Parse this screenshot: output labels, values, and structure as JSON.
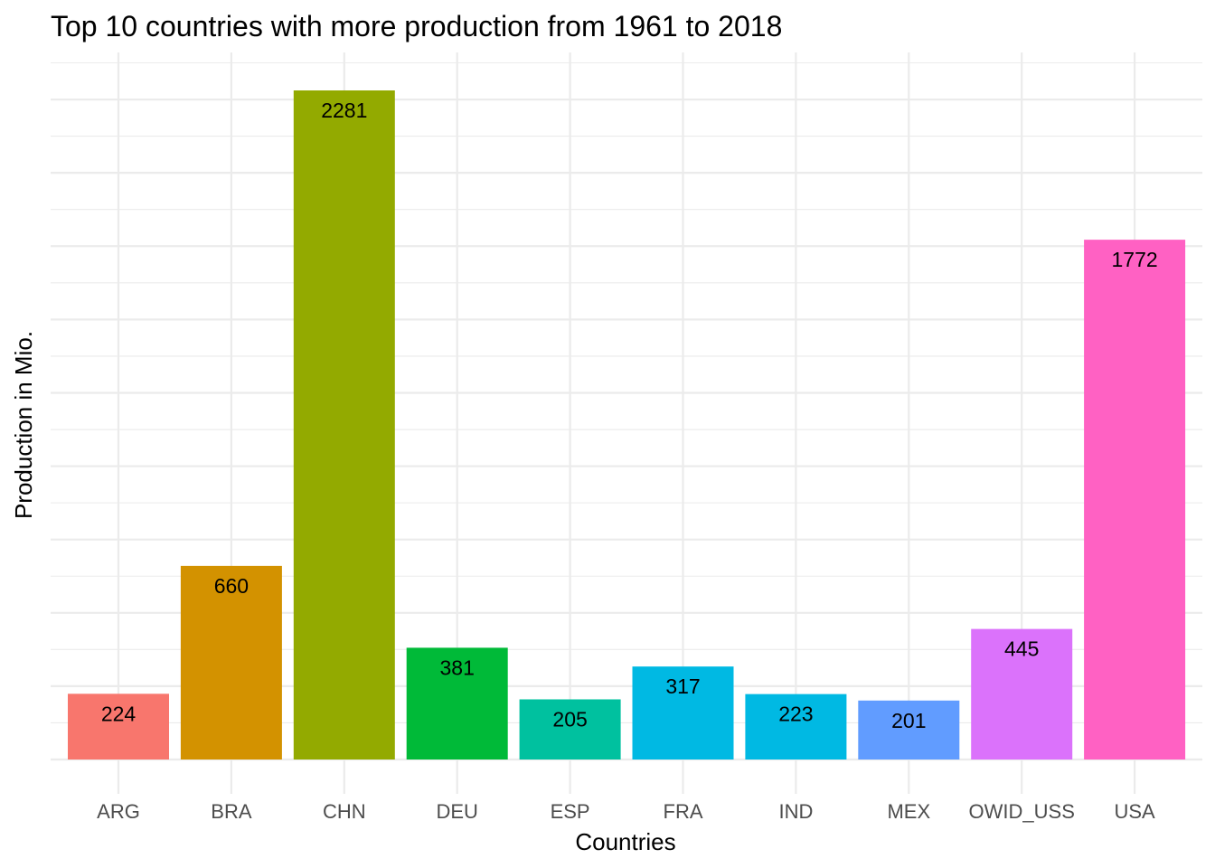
{
  "chart_data": {
    "type": "bar",
    "title": "Top 10 countries with more production from 1961 to 2018",
    "xlabel": "Countries",
    "ylabel": "Production in Mio.",
    "categories": [
      "ARG",
      "BRA",
      "CHN",
      "DEU",
      "ESP",
      "FRA",
      "IND",
      "MEX",
      "OWID_USS",
      "USA"
    ],
    "values": [
      224,
      660,
      2281,
      381,
      205,
      317,
      223,
      201,
      445,
      1772
    ],
    "labels": [
      "224",
      "660",
      "2281",
      "381",
      "205",
      "317",
      "223",
      "201",
      "445",
      "1772"
    ],
    "colors": [
      "#F8766D",
      "#D39200",
      "#93AA00",
      "#00BA38",
      "#00C19F",
      "#00B9E3",
      "#00B9E3",
      "#619CFF",
      "#DB72FB",
      "#FF61C3"
    ],
    "ylim": [
      0,
      2400
    ],
    "y_ticks_shown": false,
    "grid": true,
    "legend": "none"
  }
}
